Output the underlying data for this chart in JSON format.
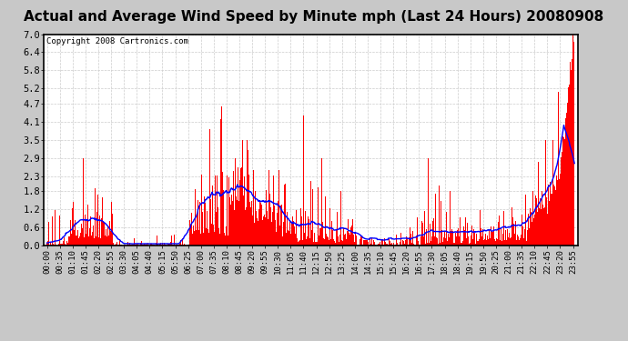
{
  "title": "Actual and Average Wind Speed by Minute mph (Last 24 Hours) 20080908",
  "copyright": "Copyright 2008 Cartronics.com",
  "yticks": [
    0.0,
    0.6,
    1.2,
    1.8,
    2.3,
    2.9,
    3.5,
    4.1,
    4.7,
    5.2,
    5.8,
    6.4,
    7.0
  ],
  "ylim": [
    0.0,
    7.0
  ],
  "bar_color": "#ff0000",
  "line_color": "#0000ff",
  "fig_bg_color": "#c8c8c8",
  "plot_bg_color": "#ffffff",
  "grid_color": "#cccccc",
  "title_fontsize": 11,
  "copyright_fontsize": 6.5,
  "tick_label_fontsize": 6.5,
  "ytick_label_fontsize": 7.5
}
